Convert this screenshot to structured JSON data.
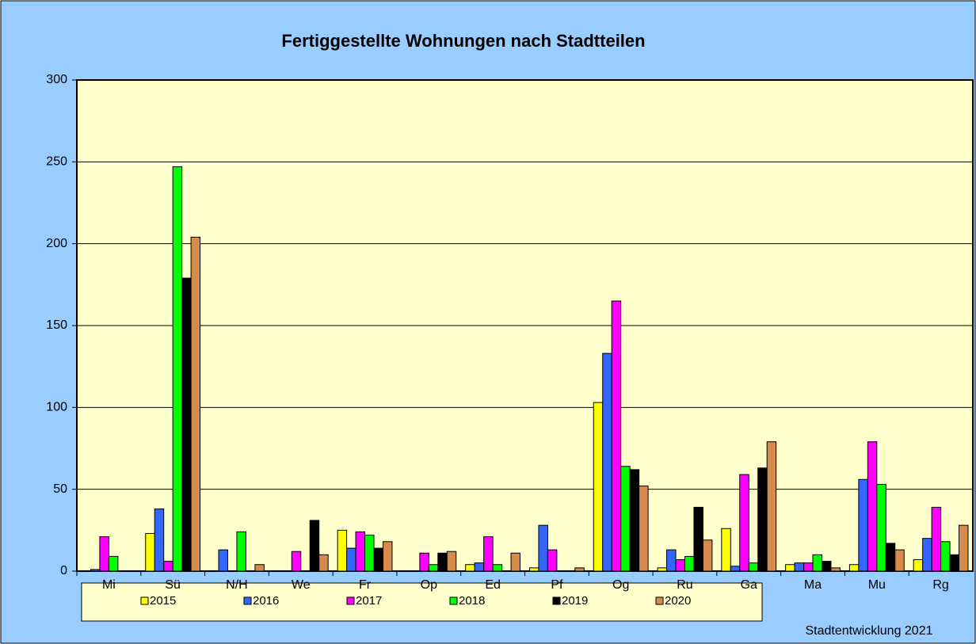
{
  "chart_data": {
    "type": "bar",
    "title": "Fertiggestellte Wohnungen nach Stadtteilen",
    "categories": [
      "Mi",
      "Sü",
      "N/H",
      "We",
      "Fr",
      "Op",
      "Ed",
      "Pf",
      "Og",
      "Ru",
      "Ga",
      "Ma",
      "Mu",
      "Rg"
    ],
    "series": [
      {
        "name": "2015",
        "color": "#ffff00",
        "values": [
          0,
          23,
          0,
          0,
          25,
          0,
          4,
          2,
          103,
          2,
          26,
          4,
          4,
          7
        ]
      },
      {
        "name": "2016",
        "color": "#3366ff",
        "values": [
          1,
          38,
          13,
          0,
          14,
          0,
          5,
          28,
          133,
          13,
          3,
          5,
          56,
          20
        ]
      },
      {
        "name": "2017",
        "color": "#ff00ff",
        "values": [
          21,
          6,
          0,
          12,
          24,
          11,
          21,
          13,
          165,
          7,
          59,
          5,
          79,
          39
        ]
      },
      {
        "name": "2018",
        "color": "#00ff00",
        "values": [
          9,
          247,
          24,
          0,
          22,
          4,
          4,
          0,
          64,
          9,
          5,
          10,
          53,
          18
        ]
      },
      {
        "name": "2019",
        "color": "#000000",
        "values": [
          0,
          179,
          0,
          31,
          14,
          11,
          0,
          0,
          62,
          39,
          63,
          6,
          17,
          10
        ]
      },
      {
        "name": "2020",
        "color": "#d68a4c",
        "values": [
          0,
          204,
          4,
          10,
          18,
          12,
          11,
          2,
          52,
          19,
          79,
          2,
          13,
          28
        ]
      }
    ],
    "ylim": [
      0,
      300
    ],
    "yticks": [
      0,
      50,
      100,
      150,
      200,
      250,
      300
    ],
    "grid": true,
    "note": "Stadtentwicklung 2021"
  }
}
